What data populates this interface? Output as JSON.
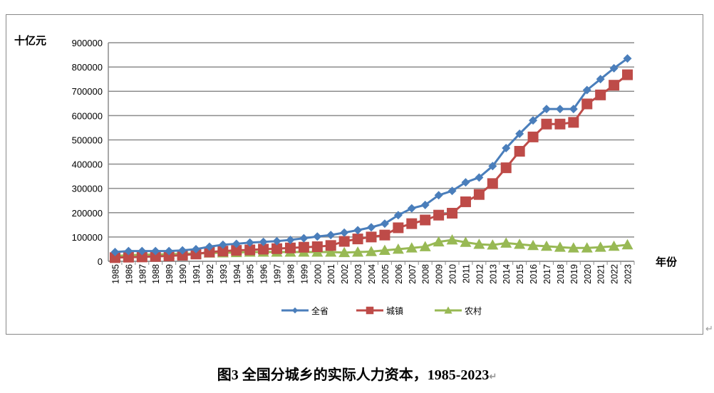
{
  "chart_data": {
    "type": "line",
    "ylabel": "十亿元",
    "xlabel": "年份",
    "ylim": [
      0,
      900000
    ],
    "yticks": [
      0,
      100000,
      200000,
      300000,
      400000,
      500000,
      600000,
      700000,
      800000,
      900000
    ],
    "grid": true,
    "legend": "bottom",
    "x": [
      1985,
      1986,
      1987,
      1988,
      1989,
      1990,
      1991,
      1992,
      1993,
      1994,
      1995,
      1996,
      1997,
      1998,
      1999,
      2000,
      2001,
      2002,
      2003,
      2004,
      2005,
      2006,
      2007,
      2008,
      2009,
      2010,
      2011,
      2012,
      2013,
      2014,
      2015,
      2016,
      2017,
      2018,
      2019,
      2020,
      2021,
      2022,
      2023
    ],
    "series": [
      {
        "name": "全省",
        "color": "#4a7ebb",
        "marker": "diamond",
        "values": [
          38000,
          42000,
          42000,
          42000,
          42000,
          45000,
          50000,
          60000,
          68000,
          72000,
          77000,
          80000,
          83000,
          88000,
          95000,
          102000,
          108000,
          118000,
          128000,
          140000,
          155000,
          190000,
          218000,
          232000,
          272000,
          290000,
          325000,
          345000,
          392000,
          466000,
          525000,
          580000,
          627000,
          627000,
          627000,
          705000,
          750000,
          795000,
          835000
        ]
      },
      {
        "name": "城镇",
        "color": "#be4b48",
        "marker": "square",
        "values": [
          15000,
          17000,
          18000,
          20000,
          22000,
          25000,
          30000,
          38000,
          42000,
          45000,
          47000,
          50000,
          52000,
          55000,
          58000,
          60000,
          65000,
          82000,
          92000,
          100000,
          108000,
          138000,
          155000,
          170000,
          190000,
          198000,
          245000,
          275000,
          320000,
          385000,
          453000,
          512000,
          565000,
          565000,
          572000,
          648000,
          685000,
          725000,
          768000
        ]
      },
      {
        "name": "农村",
        "color": "#98b954",
        "marker": "triangle",
        "values": [
          22000,
          25000,
          27000,
          28000,
          29000,
          31000,
          32000,
          34000,
          35000,
          36000,
          38000,
          38000,
          38000,
          38000,
          38000,
          38000,
          38000,
          36000,
          38000,
          40000,
          45000,
          50000,
          55000,
          60000,
          80000,
          88000,
          78000,
          70000,
          67000,
          75000,
          70000,
          65000,
          62000,
          58000,
          55000,
          55000,
          58000,
          62000,
          68000
        ]
      }
    ]
  },
  "caption": "图3  全国分城乡的实际人力资本，1985-2023",
  "return_mark": "↵",
  "anchor_mark": "↵"
}
